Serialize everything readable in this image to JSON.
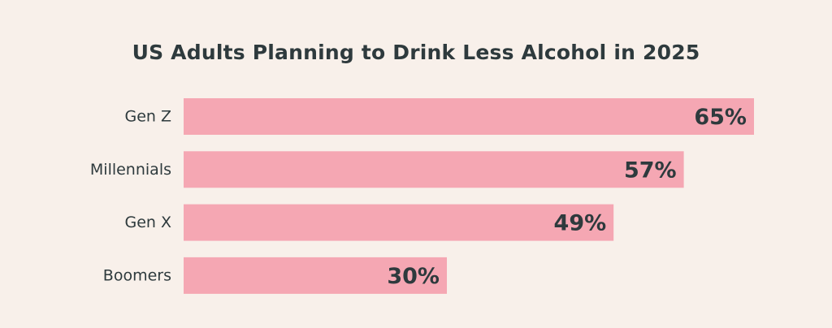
{
  "chart_data": {
    "type": "bar",
    "orientation": "horizontal",
    "title": "US Adults Planning to Drink Less Alcohol in 2025",
    "categories": [
      "Gen Z",
      "Millennials",
      "Gen X",
      "Boomers"
    ],
    "values": [
      65,
      57,
      49,
      30
    ],
    "value_labels": [
      "65%",
      "57%",
      "49%",
      "30%"
    ],
    "unit": "%",
    "xlim": [
      0,
      65
    ],
    "grid": false,
    "legend": "none"
  },
  "colors": {
    "background": "#f8f0ea",
    "bar": "#f5a7b3",
    "text": "#2e3a3d"
  }
}
